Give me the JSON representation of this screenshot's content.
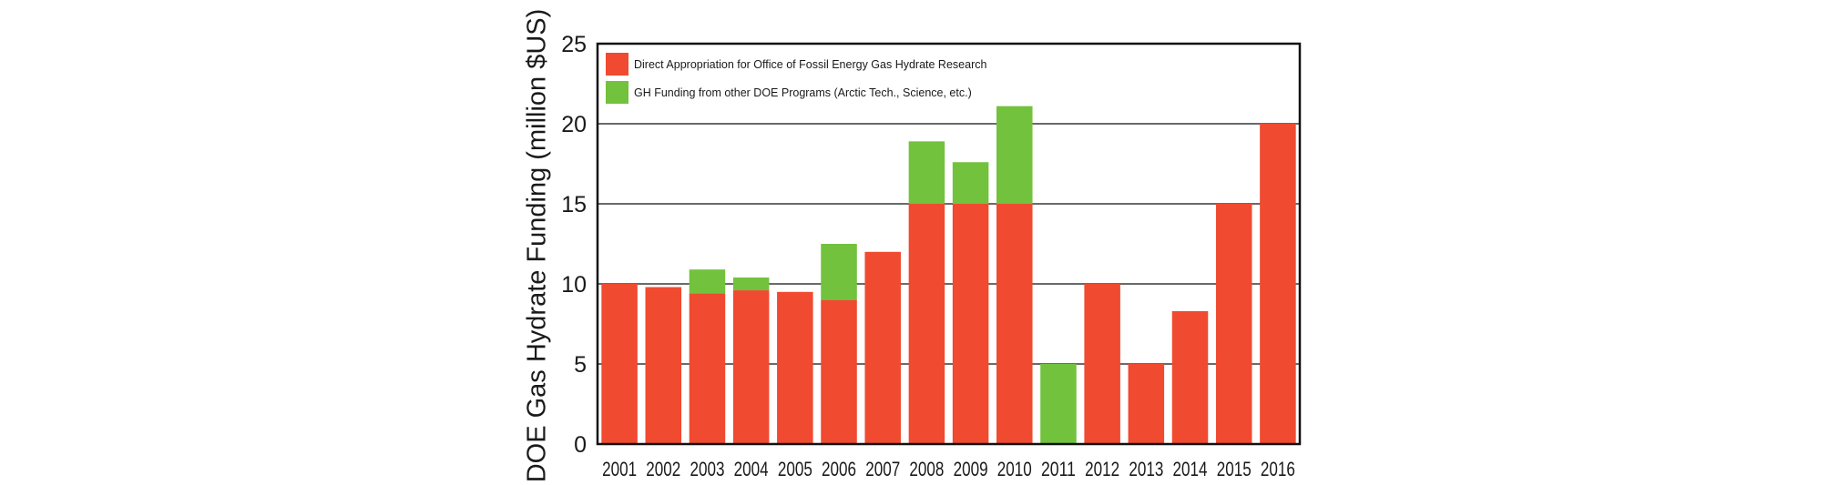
{
  "chart_data": {
    "type": "bar",
    "stacked": true,
    "categories": [
      "2001",
      "2002",
      "2003",
      "2004",
      "2005",
      "2006",
      "2007",
      "2008",
      "2009",
      "2010",
      "2011",
      "2012",
      "2013",
      "2014",
      "2015",
      "2016"
    ],
    "series": [
      {
        "name": "Direct Appropriation for Office of Fossil Energy Gas Hydrate Research",
        "color": "#f04a30",
        "values": [
          10,
          9.8,
          9.4,
          9.6,
          9.5,
          9,
          12,
          15,
          15,
          15,
          0,
          10,
          5,
          8.3,
          15,
          20
        ]
      },
      {
        "name": "GH Funding from other DOE Programs (Arctic Tech., Science, etc.)",
        "color": "#72c23d",
        "values": [
          0,
          0,
          1.5,
          0.8,
          0,
          3.5,
          0,
          3.9,
          2.6,
          6.1,
          5,
          0,
          0,
          0,
          0,
          0
        ]
      }
    ],
    "ylabel": "DOE Gas Hydrate Funding (million $US)",
    "xlabel": "",
    "title": "",
    "ylim": [
      0,
      25
    ],
    "yticks": [
      0,
      5,
      10,
      15,
      20,
      25
    ],
    "grid": true,
    "legend_position": "top-left"
  }
}
